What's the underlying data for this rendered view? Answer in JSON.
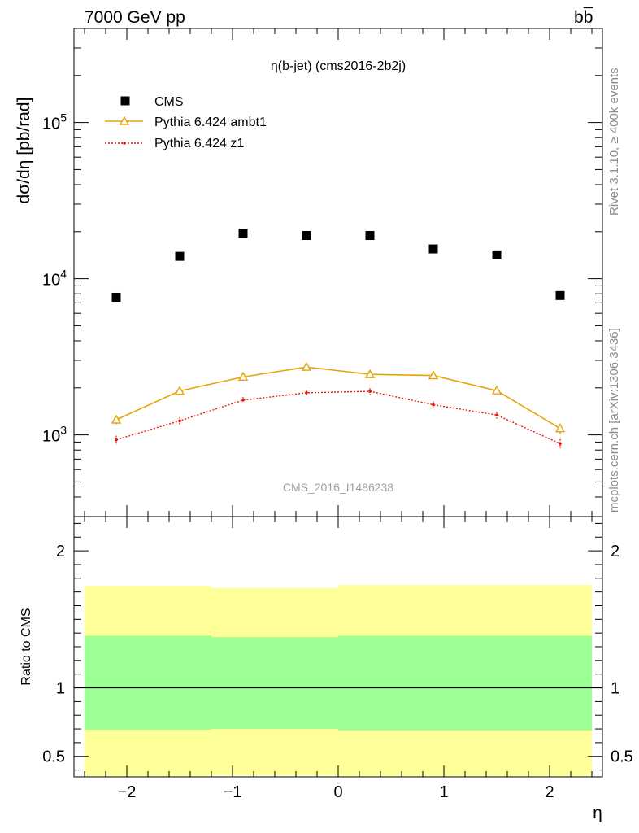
{
  "header": {
    "left": "7000 GeV pp",
    "right_main": "b",
    "right_bar": "b"
  },
  "side_labels": {
    "rivet": "Rivet 3.1.10, ≥ 400k events",
    "mcplots": "mcplots.cern.ch [arXiv:1306.3436]"
  },
  "watermark": "CMS_2016_I1486238",
  "colors": {
    "cms": "#000000",
    "ambt1": "#e8a30a",
    "z1": "#e8190a",
    "band_inner": "#9cff94",
    "band_outer": "#ffff99"
  },
  "chart_data": [
    {
      "type": "scatter",
      "title": "η(b-jet) (cms2016-2b2j)",
      "ylabel": "dσ/dη [pb/rad]",
      "xlabel": "",
      "xlim": [
        -2.5,
        2.5
      ],
      "ylim": [
        300,
        400000
      ],
      "yscale": "log",
      "x_ticks": [
        -2,
        -1,
        0,
        1,
        2
      ],
      "y_ticks": [
        {
          "value": 1000,
          "base": "10",
          "exp": "3"
        },
        {
          "value": 10000,
          "base": "10",
          "exp": "4"
        },
        {
          "value": 100000,
          "base": "10",
          "exp": "5"
        }
      ],
      "legend_position": "top-left",
      "x": [
        -2.1,
        -1.5,
        -0.9,
        -0.3,
        0.3,
        0.9,
        1.5,
        2.1
      ],
      "series": [
        {
          "name": "CMS",
          "marker": "square",
          "values": [
            7600,
            13900,
            19600,
            18900,
            18900,
            15500,
            14200,
            7800
          ]
        },
        {
          "name": "Pythia 6.424 ambt1",
          "marker": "triangle",
          "values": [
            1250,
            1910,
            2350,
            2720,
            2440,
            2400,
            1920,
            1100
          ],
          "errors": [
            80,
            90,
            100,
            100,
            100,
            110,
            90,
            80
          ]
        },
        {
          "name": "Pythia 6.424 z1",
          "marker": "dot",
          "values": [
            930,
            1230,
            1670,
            1860,
            1900,
            1560,
            1340,
            880
          ],
          "errors": [
            60,
            70,
            80,
            80,
            90,
            80,
            70,
            60
          ]
        }
      ]
    },
    {
      "type": "area",
      "ylabel": "Ratio to CMS",
      "xlabel": "η",
      "xlim": [
        -2.5,
        2.5
      ],
      "ylim": [
        0.35,
        2.25
      ],
      "x_ticks": [
        -2,
        -1,
        0,
        1,
        2
      ],
      "y_ticks": [
        0.5,
        1,
        2
      ],
      "reference_line": 1,
      "bins": [
        {
          "lo": -2.4,
          "hi": -1.2,
          "inner": [
            0.695,
            1.38
          ],
          "outer": [
            0.355,
            1.745
          ]
        },
        {
          "lo": -1.2,
          "hi": 0.0,
          "inner": [
            0.7,
            1.37
          ],
          "outer": [
            0.36,
            1.73
          ]
        },
        {
          "lo": 0.0,
          "hi": 1.2,
          "inner": [
            0.69,
            1.38
          ],
          "outer": [
            0.355,
            1.75
          ]
        },
        {
          "lo": 1.2,
          "hi": 2.4,
          "inner": [
            0.69,
            1.38
          ],
          "outer": [
            0.355,
            1.75
          ]
        }
      ]
    }
  ]
}
